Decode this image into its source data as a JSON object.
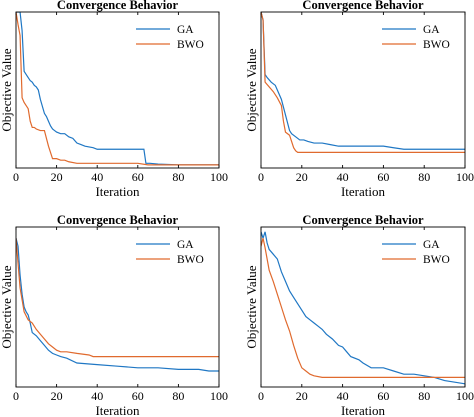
{
  "figure": {
    "background": "#ffffff"
  },
  "series_colors": {
    "GA": "#1f77c4",
    "BWO": "#e06a2e"
  },
  "chart_data": [
    {
      "type": "line",
      "title": "Convergence Behavior",
      "xlabel": "Iteration",
      "ylabel": "Objective  Value",
      "xlim": [
        0,
        100
      ],
      "ylim": [
        0,
        1
      ],
      "xticks": [
        0,
        20,
        40,
        60,
        80,
        100
      ],
      "yticks_labeled": false,
      "grid": false,
      "legend": {
        "position": "top-right",
        "entries": [
          "GA",
          "BWO"
        ]
      },
      "series": [
        {
          "name": "GA",
          "color": "#1f77c4",
          "x": [
            0,
            2,
            3,
            4,
            6,
            7,
            8,
            9,
            10,
            11,
            12,
            14,
            15,
            16,
            17,
            18,
            19,
            20,
            22,
            24,
            26,
            28,
            30,
            32,
            34,
            38,
            40,
            44,
            48,
            52,
            56,
            60,
            63,
            64,
            66,
            70,
            80,
            90,
            100
          ],
          "y": [
            1.0,
            1.0,
            0.88,
            0.62,
            0.58,
            0.56,
            0.55,
            0.53,
            0.52,
            0.5,
            0.44,
            0.35,
            0.33,
            0.3,
            0.27,
            0.25,
            0.24,
            0.23,
            0.22,
            0.22,
            0.2,
            0.19,
            0.16,
            0.15,
            0.14,
            0.13,
            0.12,
            0.12,
            0.12,
            0.12,
            0.12,
            0.12,
            0.12,
            0.03,
            0.03,
            0.025,
            0.02,
            0.02,
            0.02
          ]
        },
        {
          "name": "BWO",
          "color": "#e06a2e",
          "x": [
            0,
            1,
            2,
            3,
            4,
            5,
            6,
            7,
            8,
            9,
            10,
            12,
            14,
            16,
            18,
            20,
            22,
            24,
            26,
            30,
            40,
            50,
            60,
            65,
            70,
            80,
            90,
            100
          ],
          "y": [
            1.0,
            0.92,
            0.85,
            0.45,
            0.42,
            0.4,
            0.38,
            0.3,
            0.26,
            0.26,
            0.25,
            0.24,
            0.24,
            0.14,
            0.06,
            0.06,
            0.05,
            0.05,
            0.04,
            0.03,
            0.03,
            0.03,
            0.03,
            0.02,
            0.02,
            0.02,
            0.02,
            0.02
          ]
        }
      ]
    },
    {
      "type": "line",
      "title": "Convergence Behavior",
      "xlabel": "Iteration",
      "ylabel": "Objective  Value",
      "xlim": [
        0,
        100
      ],
      "ylim": [
        0,
        1
      ],
      "xticks": [
        0,
        20,
        40,
        60,
        80,
        100
      ],
      "yticks_labeled": false,
      "grid": false,
      "legend": {
        "position": "top-right",
        "entries": [
          "GA",
          "BWO"
        ]
      },
      "series": [
        {
          "name": "GA",
          "color": "#1f77c4",
          "x": [
            0,
            1,
            2,
            3,
            5,
            7,
            8,
            10,
            12,
            13,
            14,
            15,
            17,
            19,
            21,
            23,
            26,
            30,
            34,
            38,
            42,
            46,
            50,
            55,
            60,
            65,
            70,
            80,
            90,
            100
          ],
          "y": [
            1.0,
            0.95,
            0.6,
            0.58,
            0.55,
            0.53,
            0.5,
            0.44,
            0.34,
            0.29,
            0.24,
            0.22,
            0.2,
            0.18,
            0.18,
            0.17,
            0.16,
            0.16,
            0.15,
            0.14,
            0.14,
            0.14,
            0.14,
            0.14,
            0.14,
            0.13,
            0.12,
            0.12,
            0.12,
            0.12
          ]
        },
        {
          "name": "BWO",
          "color": "#e06a2e",
          "x": [
            0,
            1,
            2,
            4,
            6,
            8,
            10,
            11,
            12,
            14,
            16,
            17,
            18,
            20,
            30,
            40,
            50,
            60,
            70,
            80,
            90,
            100
          ],
          "y": [
            1.0,
            0.95,
            0.55,
            0.52,
            0.49,
            0.45,
            0.4,
            0.3,
            0.23,
            0.21,
            0.13,
            0.11,
            0.1,
            0.1,
            0.1,
            0.1,
            0.1,
            0.1,
            0.1,
            0.1,
            0.1,
            0.1
          ]
        }
      ]
    },
    {
      "type": "line",
      "title": "Convergence Behavior",
      "xlabel": "Iteration",
      "ylabel": "Objective  Value",
      "xlim": [
        0,
        100
      ],
      "ylim": [
        0,
        1
      ],
      "xticks": [
        0,
        20,
        40,
        60,
        80,
        100
      ],
      "yticks_labeled": false,
      "grid": false,
      "legend": {
        "position": "top-right",
        "entries": [
          "GA",
          "BWO"
        ]
      },
      "series": [
        {
          "name": "GA",
          "color": "#1f77c4",
          "x": [
            0,
            1,
            2,
            3,
            4,
            5,
            6,
            7,
            8,
            10,
            12,
            14,
            16,
            18,
            20,
            22,
            25,
            30,
            40,
            50,
            60,
            70,
            80,
            90,
            95,
            100
          ],
          "y": [
            0.93,
            0.88,
            0.7,
            0.58,
            0.5,
            0.47,
            0.45,
            0.4,
            0.34,
            0.32,
            0.29,
            0.26,
            0.23,
            0.21,
            0.2,
            0.19,
            0.18,
            0.15,
            0.14,
            0.13,
            0.12,
            0.12,
            0.11,
            0.11,
            0.1,
            0.1
          ]
        },
        {
          "name": "BWO",
          "color": "#e06a2e",
          "x": [
            0,
            2,
            4,
            6,
            8,
            10,
            12,
            14,
            16,
            18,
            20,
            22,
            25,
            30,
            36,
            38,
            40,
            50,
            60,
            70,
            80,
            90,
            100
          ],
          "y": [
            0.93,
            0.62,
            0.47,
            0.42,
            0.4,
            0.36,
            0.33,
            0.3,
            0.27,
            0.25,
            0.23,
            0.22,
            0.22,
            0.21,
            0.2,
            0.19,
            0.19,
            0.19,
            0.19,
            0.19,
            0.19,
            0.19,
            0.19
          ]
        }
      ]
    },
    {
      "type": "line",
      "title": "Convergence Behavior",
      "xlabel": "Iteration",
      "ylabel": "Objective  Value",
      "xlim": [
        0,
        100
      ],
      "ylim": [
        0,
        1
      ],
      "xticks": [
        0,
        20,
        40,
        60,
        80,
        100
      ],
      "yticks_labeled": false,
      "grid": false,
      "legend": {
        "position": "top-right",
        "entries": [
          "GA",
          "BWO"
        ]
      },
      "series": [
        {
          "name": "GA",
          "color": "#1f77c4",
          "x": [
            0,
            1,
            2,
            3,
            4,
            6,
            8,
            10,
            12,
            14,
            16,
            18,
            20,
            22,
            24,
            26,
            28,
            30,
            32,
            35,
            38,
            40,
            42,
            44,
            48,
            50,
            54,
            58,
            60,
            65,
            70,
            75,
            80,
            85,
            90,
            95,
            100
          ],
          "y": [
            0.97,
            0.93,
            0.97,
            0.9,
            0.86,
            0.83,
            0.8,
            0.72,
            0.66,
            0.6,
            0.56,
            0.52,
            0.48,
            0.44,
            0.42,
            0.4,
            0.38,
            0.36,
            0.33,
            0.3,
            0.26,
            0.25,
            0.22,
            0.19,
            0.17,
            0.15,
            0.12,
            0.12,
            0.12,
            0.1,
            0.08,
            0.08,
            0.07,
            0.06,
            0.04,
            0.03,
            0.02
          ]
        },
        {
          "name": "BWO",
          "color": "#e06a2e",
          "x": [
            0,
            1,
            2,
            3,
            4,
            6,
            8,
            10,
            12,
            14,
            16,
            18,
            20,
            22,
            24,
            26,
            30,
            40,
            50,
            60,
            70,
            80,
            90,
            100
          ],
          "y": [
            0.88,
            0.93,
            0.87,
            0.8,
            0.73,
            0.66,
            0.58,
            0.5,
            0.42,
            0.35,
            0.26,
            0.18,
            0.12,
            0.1,
            0.08,
            0.07,
            0.06,
            0.06,
            0.06,
            0.06,
            0.06,
            0.06,
            0.06,
            0.06
          ]
        }
      ]
    }
  ]
}
